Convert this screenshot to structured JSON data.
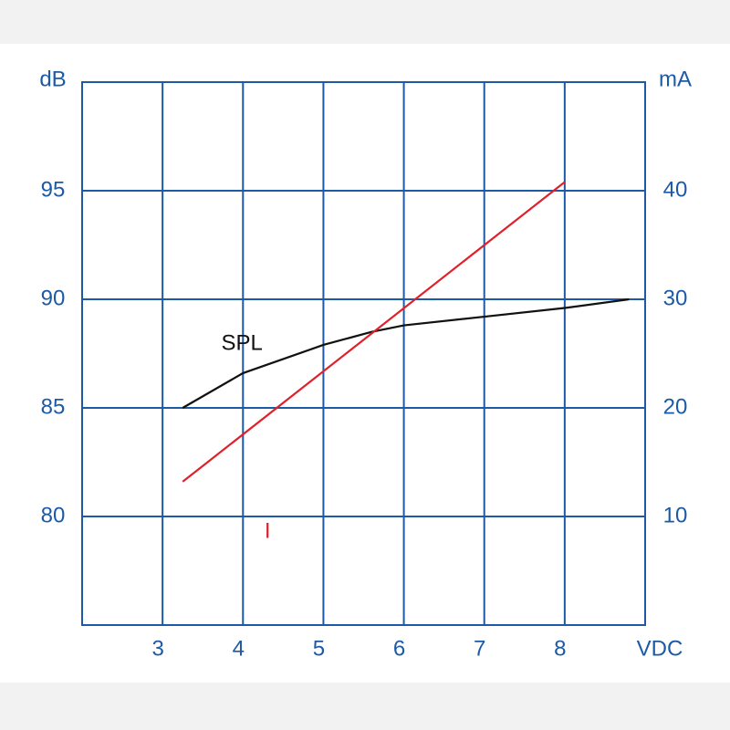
{
  "chart_data": {
    "type": "line",
    "x_label": "VDC",
    "y_label": "dB",
    "y2_label": "mA",
    "xlim": [
      2,
      9
    ],
    "xticks": [
      3,
      4,
      5,
      6,
      7,
      8
    ],
    "ylim": [
      75,
      100
    ],
    "yticks": [
      80,
      85,
      90,
      95
    ],
    "y2lim": [
      0,
      50
    ],
    "y2ticks": [
      10,
      20,
      30,
      40
    ],
    "grid": true,
    "series": [
      {
        "name": "SPL",
        "color": "#111111",
        "axis": "y",
        "x": [
          3.25,
          4,
          5,
          5.6,
          6,
          7,
          8,
          8.8
        ],
        "values": [
          85.0,
          86.6,
          87.9,
          88.5,
          88.8,
          89.2,
          89.6,
          90.0
        ]
      },
      {
        "name": "I",
        "color": "#e0202a",
        "axis": "y2",
        "x": [
          3.25,
          8
        ],
        "values": [
          13.2,
          40.8
        ]
      }
    ]
  }
}
